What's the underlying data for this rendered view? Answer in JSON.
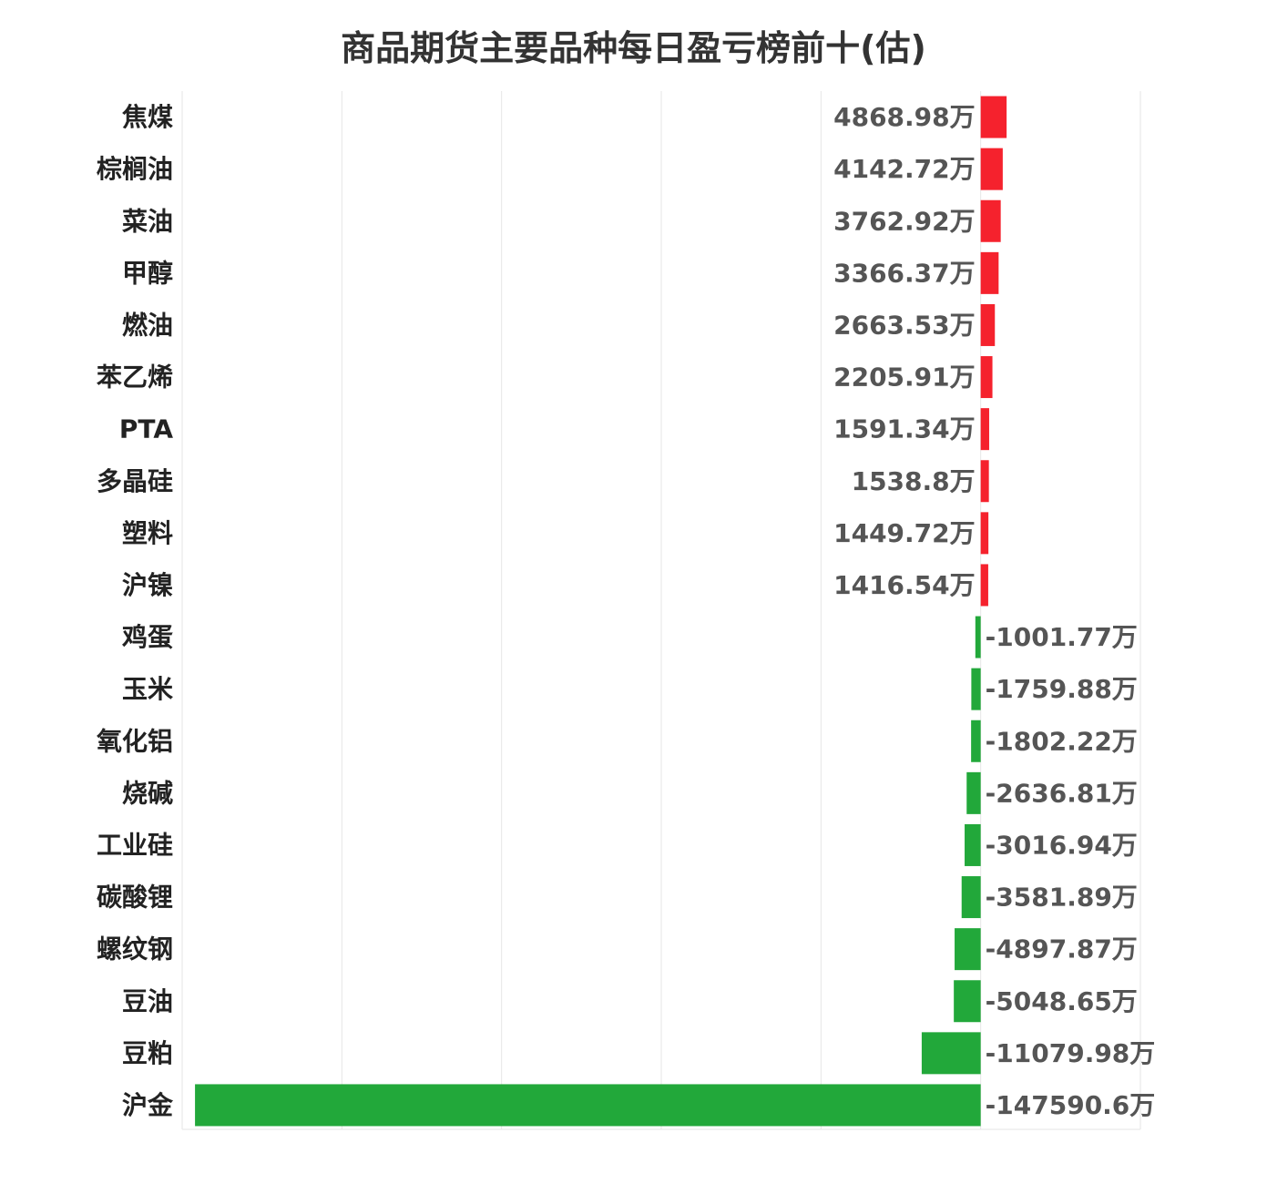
{
  "chart_data": {
    "type": "bar",
    "orientation": "horizontal",
    "title": "商品期货主要品种每日盈亏榜前十(估)",
    "categories": [
      "焦煤",
      "棕榈油",
      "菜油",
      "甲醇",
      "燃油",
      "苯乙烯",
      "PTA",
      "多晶硅",
      "塑料",
      "沪镍",
      "鸡蛋",
      "玉米",
      "氧化铝",
      "烧碱",
      "工业硅",
      "碳酸锂",
      "螺纹钢",
      "豆油",
      "豆粕",
      "沪金"
    ],
    "values": [
      4868.98,
      4142.72,
      3762.92,
      3366.37,
      2663.53,
      2205.91,
      1591.34,
      1538.8,
      1449.72,
      1416.54,
      -1001.77,
      -1759.88,
      -1802.22,
      -2636.81,
      -3016.94,
      -3581.89,
      -4897.87,
      -5048.65,
      -11079.98,
      -147590.6
    ],
    "value_labels": [
      "4868.98万",
      "4142.72万",
      "3762.92万",
      "3366.37万",
      "2663.53万",
      "2205.91万",
      "1591.34万",
      "1538.8万",
      "1449.72万",
      "1416.54万",
      "-1001.77万",
      "-1759.88万",
      "-1802.22万",
      "-2636.81万",
      "-3016.94万",
      "-3581.89万",
      "-4897.87万",
      "-5048.65万",
      "-11079.98万",
      "-147590.6万"
    ],
    "unit": "万",
    "xlim": [
      -150000,
      30000
    ],
    "grid": true,
    "legend": "none",
    "colors": {
      "positive": "#f5222d",
      "negative": "#22a83a"
    }
  }
}
